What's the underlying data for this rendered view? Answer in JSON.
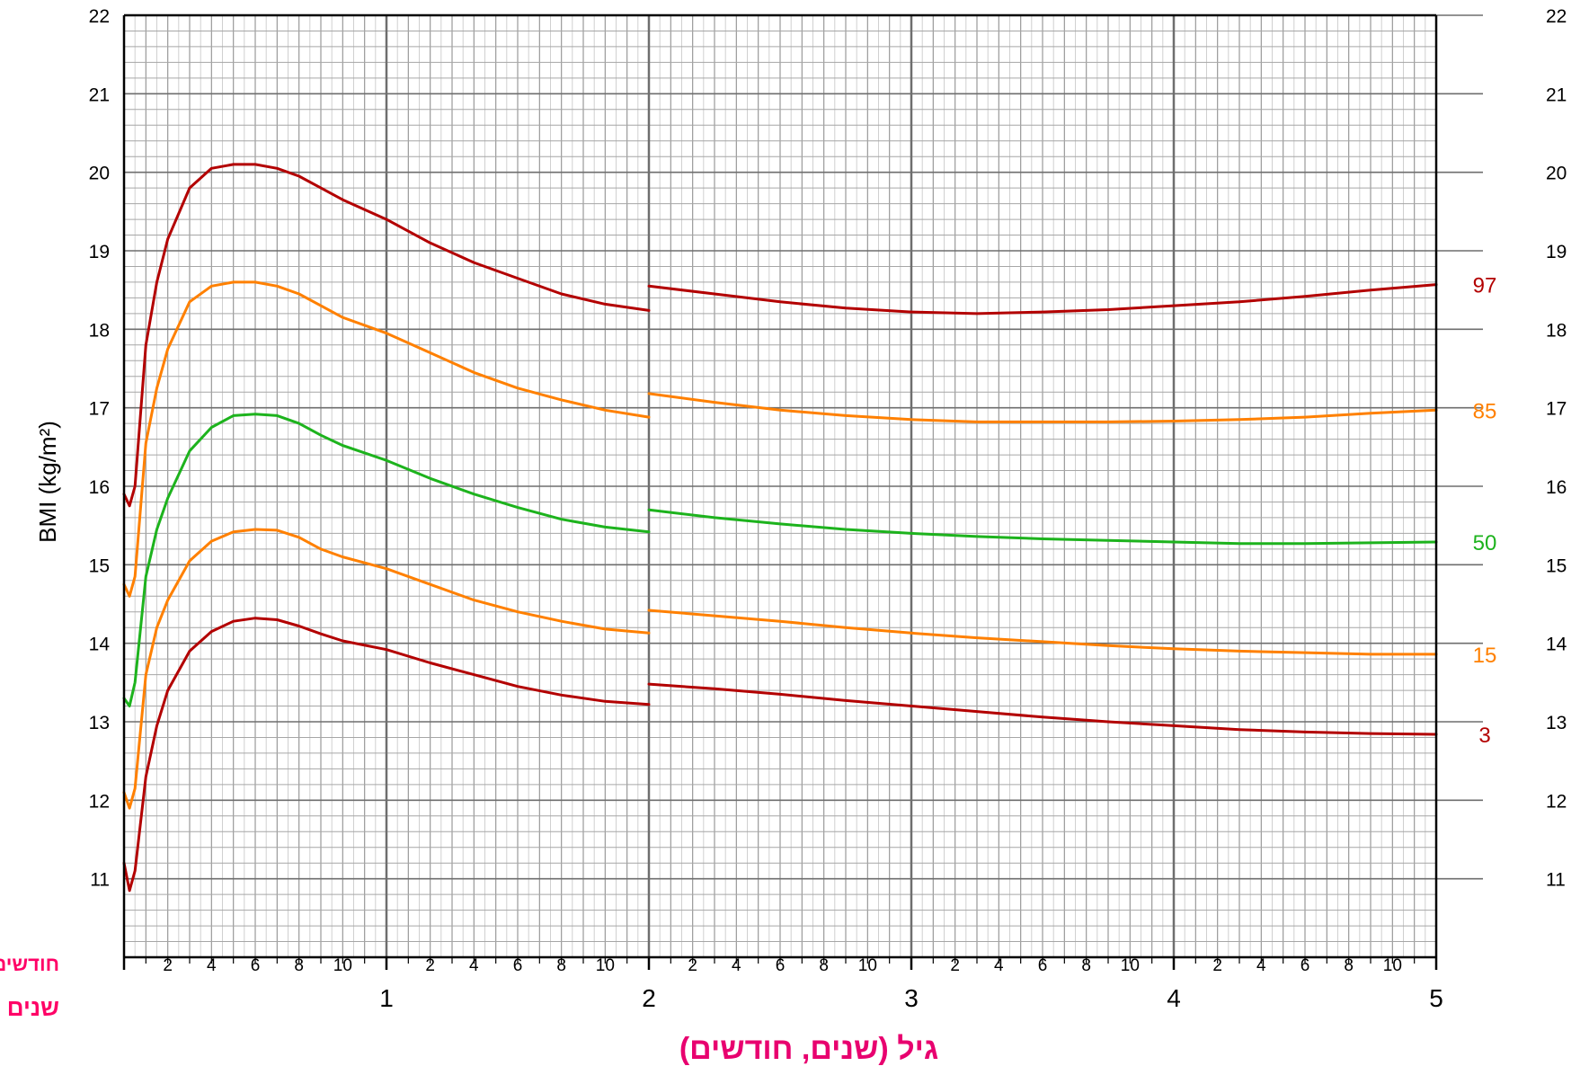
{
  "chart_data": {
    "type": "line",
    "ylabel": "BMI (kg/m²)",
    "xlabel": "גיל (שנים, חודשים)",
    "row_label_months": "חודשים",
    "row_label_years": "שנים",
    "xlim": [
      0,
      60
    ],
    "ylim": [
      10,
      22
    ],
    "y_ticks": [
      11,
      12,
      13,
      14,
      15,
      16,
      17,
      18,
      19,
      20,
      21,
      22
    ],
    "month_ticks": [
      "2",
      "4",
      "6",
      "8",
      "10"
    ],
    "year_ticks": [
      "1",
      "2",
      "3",
      "4",
      "5"
    ],
    "grid": true,
    "colors": {
      "p3_p97": "#b30000",
      "p15_p85": "#ff8000",
      "p50": "#1db31d",
      "months_label": "#ff0066",
      "axis_title": "#e8006f"
    },
    "series": [
      {
        "name": "97",
        "color": "#b30000",
        "x": [
          0,
          0.25,
          0.5,
          1,
          1.5,
          2,
          3,
          4,
          5,
          6,
          7,
          8,
          9,
          10,
          12,
          14,
          16,
          18,
          20,
          22,
          24,
          24,
          27,
          30,
          33,
          36,
          39,
          42,
          45,
          48,
          51,
          54,
          57,
          60
        ],
        "values": [
          15.9,
          15.75,
          16.0,
          17.8,
          18.6,
          19.15,
          19.8,
          20.05,
          20.1,
          20.1,
          20.05,
          19.95,
          19.8,
          19.65,
          19.4,
          19.1,
          18.85,
          18.65,
          18.45,
          18.32,
          18.24,
          18.55,
          18.45,
          18.35,
          18.27,
          18.22,
          18.2,
          18.22,
          18.25,
          18.3,
          18.35,
          18.42,
          18.5,
          18.57
        ]
      },
      {
        "name": "85",
        "color": "#ff8000",
        "x": [
          0,
          0.25,
          0.5,
          1,
          1.5,
          2,
          3,
          4,
          5,
          6,
          7,
          8,
          9,
          10,
          12,
          14,
          16,
          18,
          20,
          22,
          24,
          24,
          27,
          30,
          33,
          36,
          39,
          42,
          45,
          48,
          51,
          54,
          57,
          60
        ],
        "values": [
          14.75,
          14.6,
          14.85,
          16.55,
          17.25,
          17.75,
          18.35,
          18.55,
          18.6,
          18.6,
          18.55,
          18.45,
          18.3,
          18.15,
          17.95,
          17.7,
          17.45,
          17.25,
          17.1,
          16.97,
          16.88,
          17.18,
          17.07,
          16.97,
          16.9,
          16.85,
          16.82,
          16.82,
          16.82,
          16.83,
          16.85,
          16.88,
          16.93,
          16.97
        ]
      },
      {
        "name": "50",
        "color": "#1db31d",
        "x": [
          0,
          0.25,
          0.5,
          1,
          1.5,
          2,
          3,
          4,
          5,
          6,
          7,
          8,
          9,
          10,
          12,
          14,
          16,
          18,
          20,
          22,
          24,
          24,
          27,
          30,
          33,
          36,
          39,
          42,
          45,
          48,
          51,
          54,
          57,
          60
        ],
        "values": [
          13.3,
          13.2,
          13.5,
          14.85,
          15.45,
          15.85,
          16.45,
          16.75,
          16.9,
          16.92,
          16.9,
          16.8,
          16.65,
          16.52,
          16.33,
          16.1,
          15.9,
          15.73,
          15.58,
          15.48,
          15.42,
          15.7,
          15.6,
          15.52,
          15.45,
          15.4,
          15.36,
          15.33,
          15.31,
          15.29,
          15.27,
          15.27,
          15.28,
          15.29
        ]
      },
      {
        "name": "15",
        "color": "#ff8000",
        "x": [
          0,
          0.25,
          0.5,
          1,
          1.5,
          2,
          3,
          4,
          5,
          6,
          7,
          8,
          9,
          10,
          12,
          14,
          16,
          18,
          20,
          22,
          24,
          24,
          27,
          30,
          33,
          36,
          39,
          42,
          45,
          48,
          51,
          54,
          57,
          60
        ],
        "values": [
          12.1,
          11.9,
          12.15,
          13.6,
          14.2,
          14.55,
          15.05,
          15.3,
          15.42,
          15.45,
          15.44,
          15.35,
          15.2,
          15.1,
          14.95,
          14.75,
          14.55,
          14.4,
          14.28,
          14.18,
          14.13,
          14.42,
          14.35,
          14.28,
          14.2,
          14.13,
          14.07,
          14.02,
          13.97,
          13.93,
          13.9,
          13.88,
          13.86,
          13.86
        ]
      },
      {
        "name": "3",
        "color": "#b30000",
        "x": [
          0,
          0.25,
          0.5,
          1,
          1.5,
          2,
          3,
          4,
          5,
          6,
          7,
          8,
          9,
          10,
          12,
          14,
          16,
          18,
          20,
          22,
          24,
          24,
          27,
          30,
          33,
          36,
          39,
          42,
          45,
          48,
          51,
          54,
          57,
          60
        ],
        "values": [
          11.2,
          10.85,
          11.1,
          12.3,
          12.95,
          13.4,
          13.9,
          14.15,
          14.28,
          14.32,
          14.3,
          14.22,
          14.12,
          14.03,
          13.92,
          13.75,
          13.6,
          13.45,
          13.34,
          13.26,
          13.22,
          13.48,
          13.42,
          13.35,
          13.27,
          13.2,
          13.13,
          13.06,
          13.0,
          12.95,
          12.9,
          12.87,
          12.85,
          12.84
        ]
      }
    ]
  }
}
